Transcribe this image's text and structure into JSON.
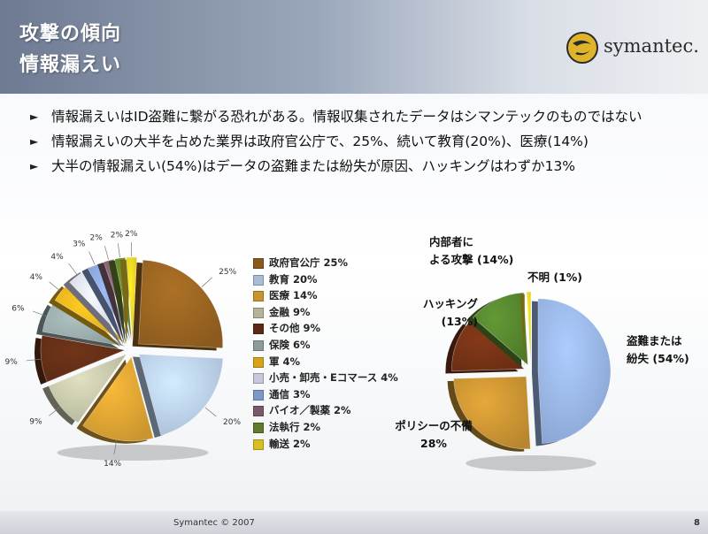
{
  "slide": {
    "title_line1": "攻撃の傾向",
    "title_line2": "情報漏えい",
    "logo_text": "symantec.",
    "footer": "Symantec © 2007",
    "page_number": "8"
  },
  "bullets": [
    "情報漏えいはID盗難に繋がる恐れがある。情報収集されたデータはシマンテックのものではない",
    "情報漏えいの大半を占めた業界は政府官公庁で、25%、続いて教育(20%)、医療(14%)",
    "大半の情報漏えい(54%)はデータの盗難または紛失が原因、ハッキングはわずか13%"
  ],
  "chart_data": [
    {
      "type": "pie",
      "categories": [
        "政府官公庁",
        "教育",
        "医療",
        "金融",
        "その他",
        "保険",
        "軍",
        "小売・卸売・Eコマース",
        "通信",
        "バイオ/製薬",
        "法執行",
        "輸送"
      ],
      "values": [
        25,
        20,
        14,
        9,
        9,
        6,
        4,
        4,
        3,
        2,
        2,
        2
      ],
      "legend": [
        "政府官公庁 25%",
        "教育 20%",
        "医療 14%",
        "金融 9%",
        "その他 9%",
        "保険 6%",
        "軍 4%",
        "小売・卸売・Eコマース 4%",
        "通信 3%",
        "バイオ／製薬 2%",
        "法執行 2%",
        "輸送 2%"
      ],
      "slice_labels": [
        "25%",
        "20%",
        "14%",
        "9%",
        "9%",
        "6%",
        "4%",
        "4%",
        "3%",
        "2%",
        "2%",
        "2%"
      ],
      "colors": [
        "#8a5a1e",
        "#a9bdd6",
        "#c8952e",
        "#b4b49a",
        "#5a2a14",
        "#8c9c9c",
        "#d6a41a",
        "#c6c8dc",
        "#7e96c8",
        "#7a5a6a",
        "#5e7a2a",
        "#d8c020"
      ],
      "exploded": true,
      "legend_placement": "right"
    },
    {
      "type": "pie",
      "categories": [
        "盗難または紛失",
        "ポリシーの不備",
        "ハッキング",
        "内部者による攻撃",
        "不明"
      ],
      "values": [
        54,
        28,
        13,
        14,
        1
      ],
      "labels": [
        {
          "line1": "盗難または",
          "line2": "紛失 (54%)"
        },
        {
          "line1": "ポリシーの不備",
          "line2": "28%"
        },
        {
          "line1": "ハッキング",
          "line2": "(13%)"
        },
        {
          "line1": "内部者に",
          "line2": "よる攻撃 (14%)"
        },
        {
          "line1": "不明 (1%)",
          "line2": ""
        }
      ],
      "colors": [
        "#8aa4d0",
        "#b8862e",
        "#6a2e14",
        "#4e7a2a",
        "#d8c020"
      ],
      "exploded": true
    }
  ]
}
